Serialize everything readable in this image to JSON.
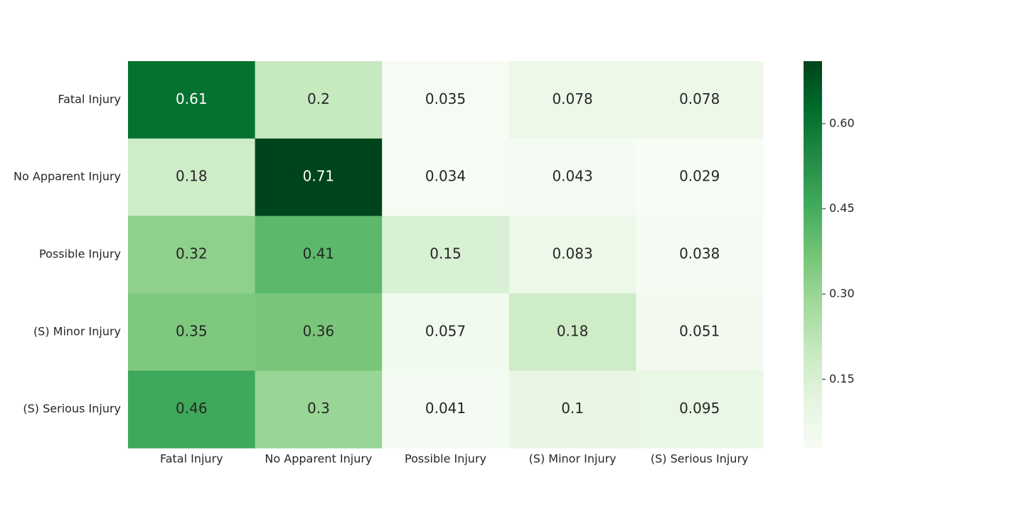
{
  "chart_data": {
    "type": "heatmap",
    "rows": [
      "Fatal Injury",
      "No Apparent Injury",
      "Possible Injury",
      "(S) Minor Injury",
      "(S) Serious Injury"
    ],
    "columns": [
      "Fatal Injury",
      "No Apparent Injury",
      "Possible Injury",
      "(S) Minor Injury",
      "(S) Serious Injury"
    ],
    "values": [
      [
        0.61,
        0.2,
        0.035,
        0.078,
        0.078
      ],
      [
        0.18,
        0.71,
        0.034,
        0.043,
        0.029
      ],
      [
        0.32,
        0.41,
        0.15,
        0.083,
        0.038
      ],
      [
        0.35,
        0.36,
        0.057,
        0.18,
        0.051
      ],
      [
        0.46,
        0.3,
        0.041,
        0.1,
        0.095
      ]
    ],
    "cell_labels": [
      [
        "0.61",
        "0.2",
        "0.035",
        "0.078",
        "0.078"
      ],
      [
        "0.18",
        "0.71",
        "0.034",
        "0.043",
        "0.029"
      ],
      [
        "0.32",
        "0.41",
        "0.15",
        "0.083",
        "0.038"
      ],
      [
        "0.35",
        "0.36",
        "0.057",
        "0.18",
        "0.051"
      ],
      [
        "0.46",
        "0.3",
        "0.041",
        "0.1",
        "0.095"
      ]
    ],
    "colormap": "Greens",
    "vmin": 0.029,
    "vmax": 0.71,
    "colorbar": {
      "ticks": [
        0.15,
        0.3,
        0.45,
        0.6
      ],
      "tick_labels": [
        "0.15",
        "0.30",
        "0.45",
        "0.60"
      ],
      "placement": "right"
    },
    "grid": false,
    "title": "",
    "xlabel": "",
    "ylabel": ""
  }
}
